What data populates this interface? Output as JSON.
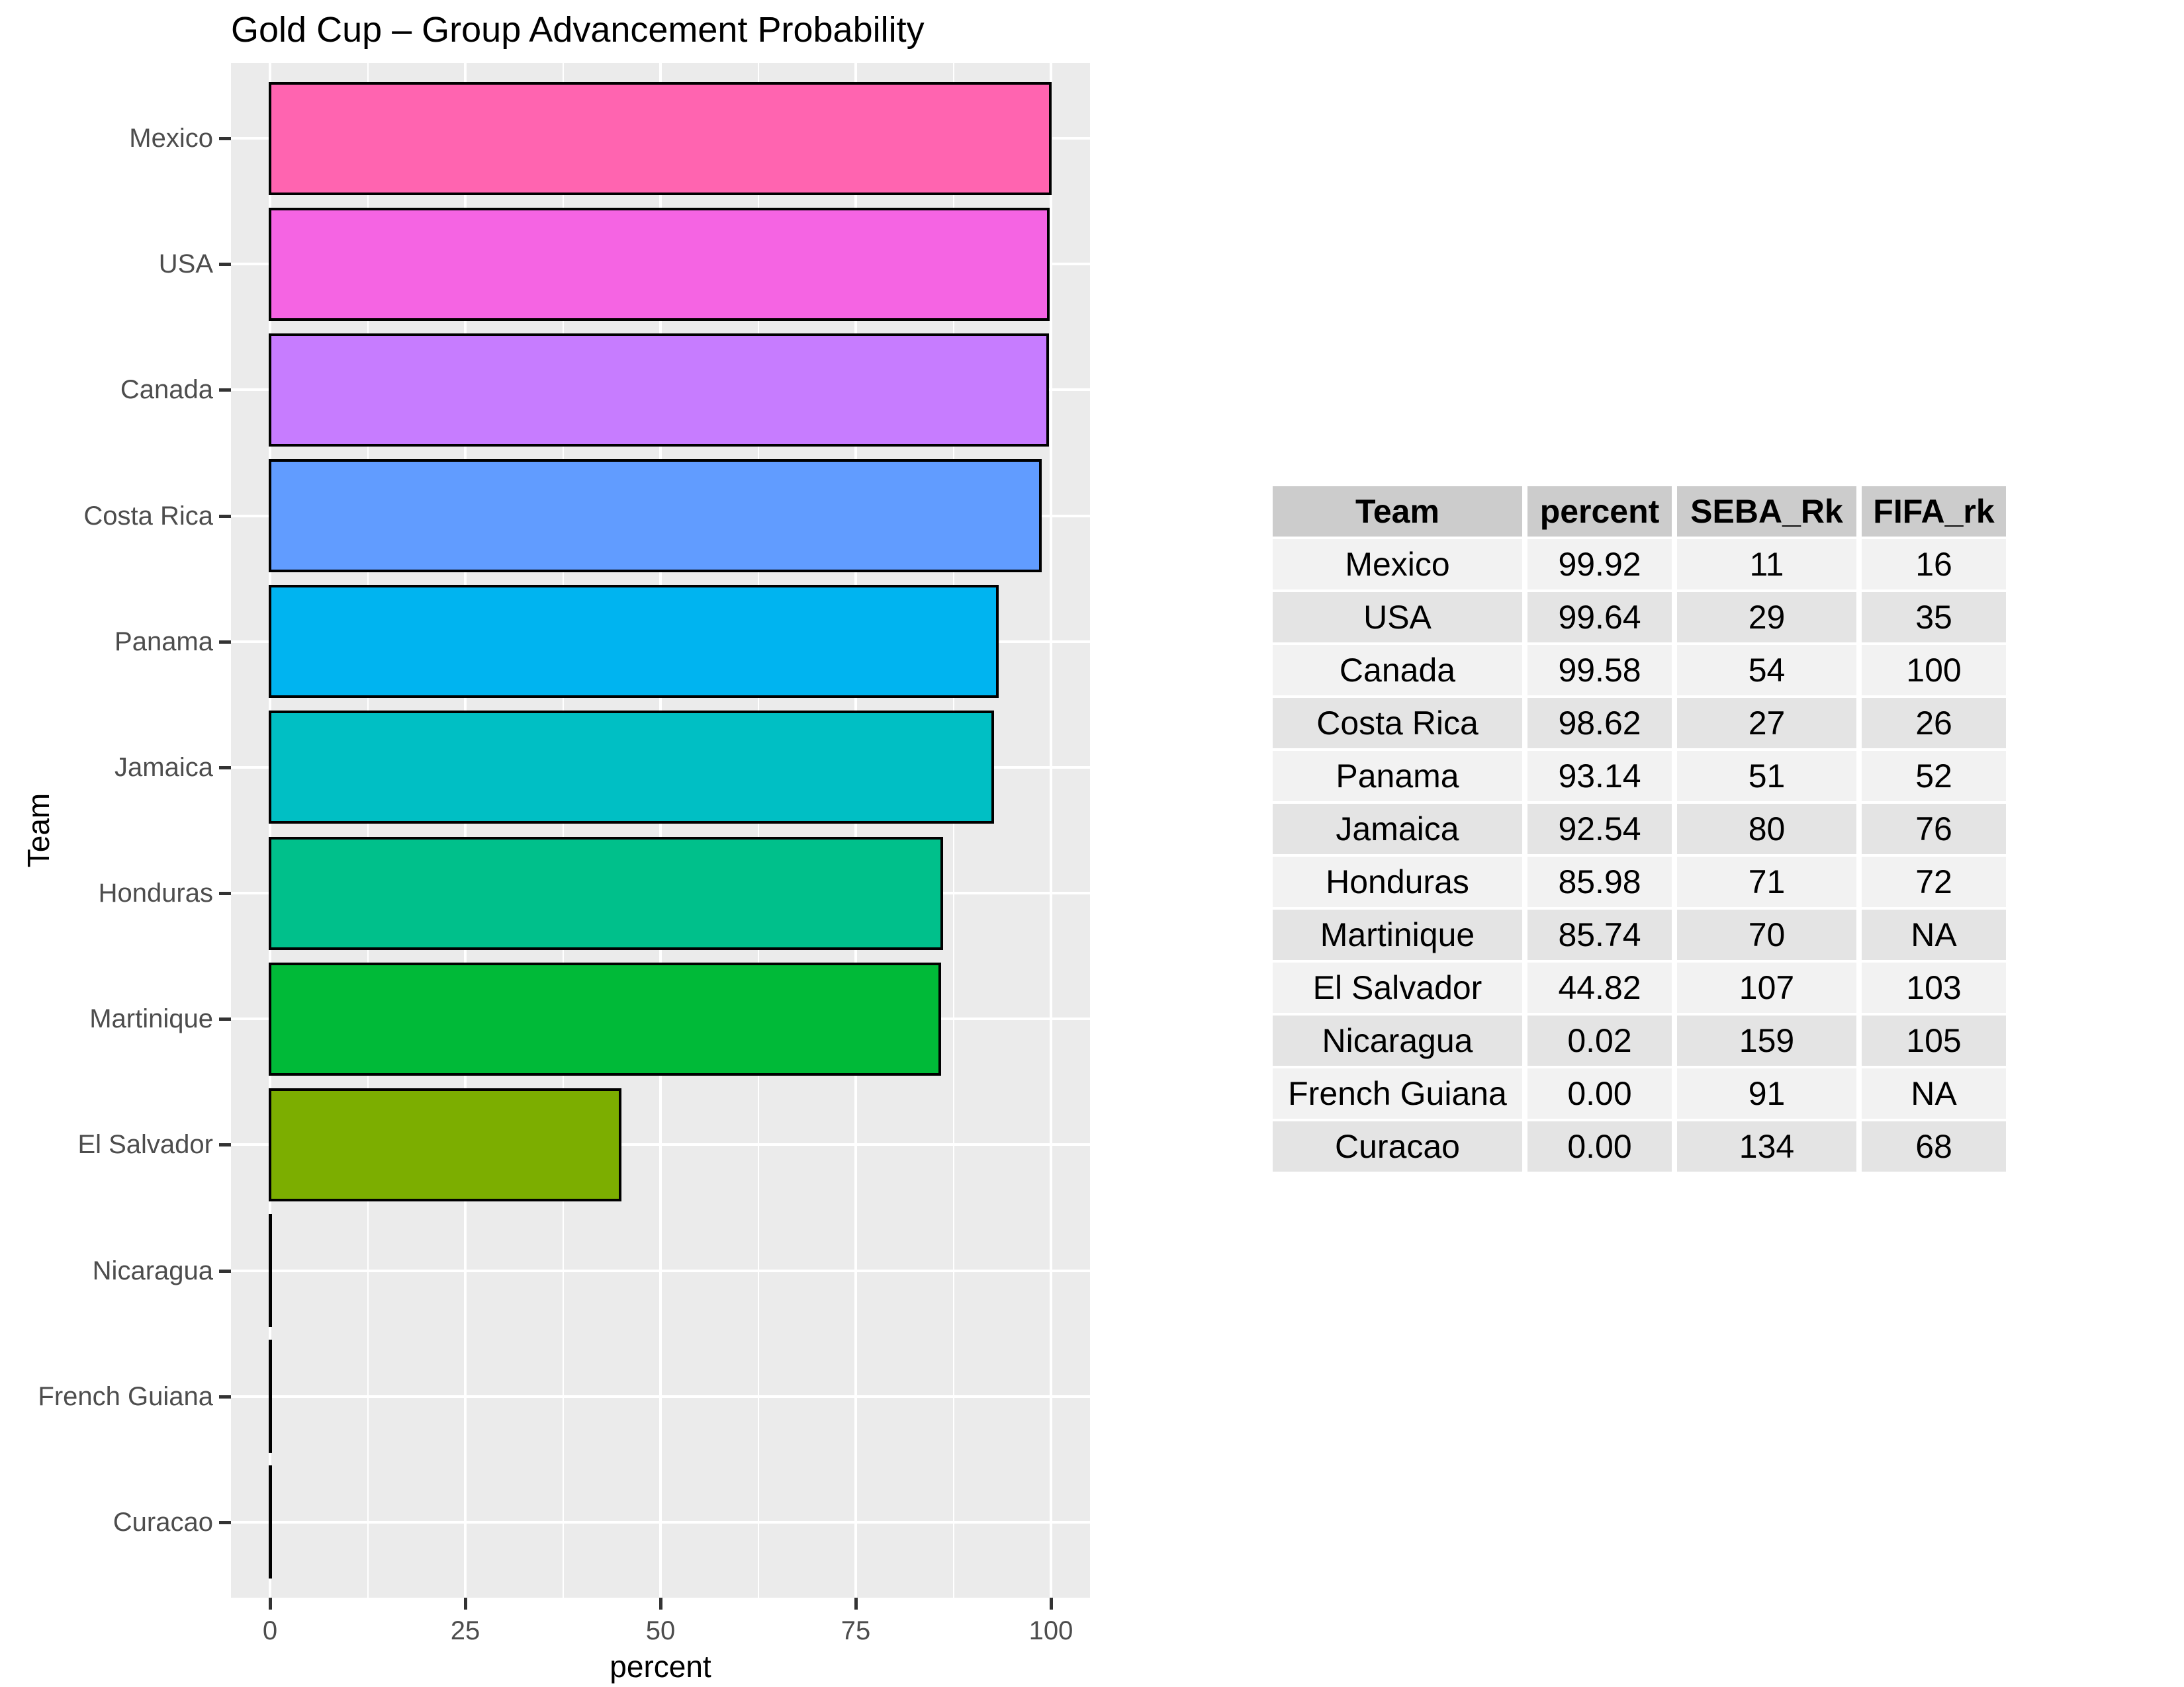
{
  "title": "Gold Cup – Group Advancement Probability",
  "chart_data": {
    "type": "bar",
    "orientation": "horizontal",
    "title": "Gold Cup – Group Advancement Probability",
    "xlabel": "percent",
    "ylabel": "Team",
    "xlim": [
      0,
      100
    ],
    "x_ticks": [
      0,
      25,
      50,
      75,
      100
    ],
    "x_minor_ticks": [
      12.5,
      37.5,
      62.5,
      87.5
    ],
    "grid": true,
    "legend": "none",
    "categories": [
      "Mexico",
      "USA",
      "Canada",
      "Costa Rica",
      "Panama",
      "Jamaica",
      "Honduras",
      "Martinique",
      "El Salvador",
      "Nicaragua",
      "French Guiana",
      "Curacao"
    ],
    "values": [
      99.92,
      99.64,
      99.58,
      98.62,
      93.14,
      92.54,
      85.98,
      85.74,
      44.82,
      0.02,
      0.0,
      0.0
    ],
    "bar_colors": [
      "#FF64B0",
      "#F564E3",
      "#C77CFF",
      "#619CFF",
      "#00B4F0",
      "#00BFC4",
      "#00C08B",
      "#00BA38",
      "#7CAE00",
      "#B79F00",
      "#DE8C00",
      "#F8766D"
    ],
    "bar_border_color": "#000000",
    "panel_bg": "#EBEBEB",
    "grid_color": "#FFFFFF",
    "tick_label_color": "#4D4D4D",
    "tick_mark_color": "#333333"
  },
  "table": {
    "headers": [
      "Team",
      "percent",
      "SEBA_Rk",
      "FIFA_rk"
    ],
    "rows": [
      [
        "Mexico",
        "99.92",
        "11",
        "16"
      ],
      [
        "USA",
        "99.64",
        "29",
        "35"
      ],
      [
        "Canada",
        "99.58",
        "54",
        "100"
      ],
      [
        "Costa Rica",
        "98.62",
        "27",
        "26"
      ],
      [
        "Panama",
        "93.14",
        "51",
        "52"
      ],
      [
        "Jamaica",
        "92.54",
        "80",
        "76"
      ],
      [
        "Honduras",
        "85.98",
        "71",
        "72"
      ],
      [
        "Martinique",
        "85.74",
        "70",
        "NA"
      ],
      [
        "El Salvador",
        "44.82",
        "107",
        "103"
      ],
      [
        "Nicaragua",
        "0.02",
        "159",
        "105"
      ],
      [
        "French Guiana",
        "0.00",
        "91",
        "NA"
      ],
      [
        "Curacao",
        "0.00",
        "134",
        "68"
      ]
    ],
    "header_bg": "#CCCCCC",
    "row_bg_odd": "#F2F2F2",
    "row_bg_even": "#E4E4E4"
  }
}
